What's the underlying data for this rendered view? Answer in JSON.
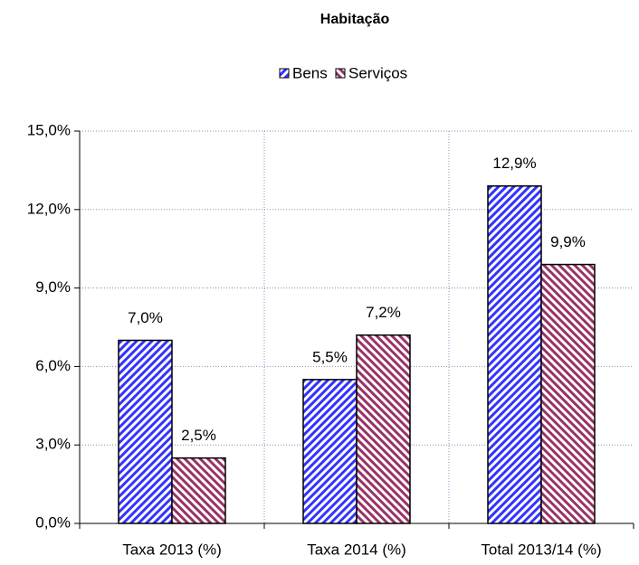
{
  "chart_data": {
    "type": "bar",
    "title": "Habitação",
    "categories": [
      "Taxa 2013 (%)",
      "Taxa 2014 (%)",
      "Total 2013/14 (%)"
    ],
    "series": [
      {
        "name": "Bens",
        "color": "#3333ff",
        "values": [
          7.0,
          5.5,
          12.9
        ],
        "value_labels": [
          "7,0%",
          "5,5%",
          "12,9%"
        ]
      },
      {
        "name": "Serviços",
        "color": "#993366",
        "values": [
          2.5,
          7.2,
          9.9
        ],
        "value_labels": [
          "2,5%",
          "7,2%",
          "9,9%"
        ]
      }
    ],
    "ylim": [
      0,
      15
    ],
    "yticks": [
      {
        "value": 0,
        "label": "0,0%"
      },
      {
        "value": 3,
        "label": "3,0%"
      },
      {
        "value": 6,
        "label": "6,0%"
      },
      {
        "value": 9,
        "label": "9,0%"
      },
      {
        "value": 12,
        "label": "12,0%"
      },
      {
        "value": 15,
        "label": "15,0%"
      }
    ],
    "grid": true,
    "legend": "top"
  }
}
